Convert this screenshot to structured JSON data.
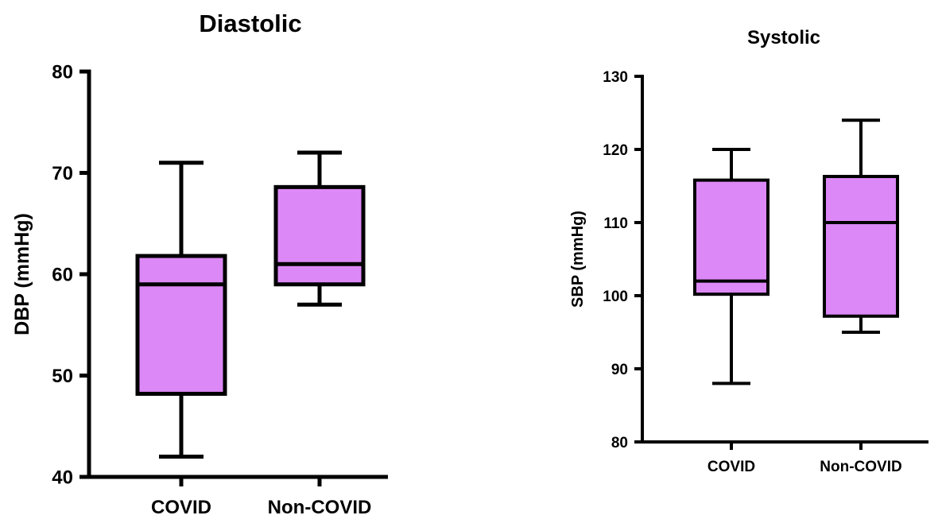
{
  "chart_data": [
    {
      "type": "box",
      "title": "Diastolic",
      "xlabel": "",
      "ylabel": "DBP (mmHg)",
      "ylim": [
        40,
        80
      ],
      "yticks": [
        40,
        50,
        60,
        70,
        80
      ],
      "categories": [
        "COVID",
        "Non-COVID"
      ],
      "boxes": [
        {
          "category": "COVID",
          "min": 42,
          "q1": 48.2,
          "median": 59,
          "q3": 61.8,
          "max": 71
        },
        {
          "category": "Non-COVID",
          "min": 57,
          "q1": 59,
          "median": 61,
          "q3": 68.6,
          "max": 72
        }
      ],
      "grid": false,
      "box_color": "#dd88f7"
    },
    {
      "type": "box",
      "title": "Systolic",
      "xlabel": "",
      "ylabel": "SBP (mmHg)",
      "ylim": [
        80,
        130
      ],
      "yticks": [
        80,
        90,
        100,
        110,
        120,
        130
      ],
      "categories": [
        "COVID",
        "Non-COVID"
      ],
      "boxes": [
        {
          "category": "COVID",
          "min": 88,
          "q1": 100.2,
          "median": 102,
          "q3": 115.8,
          "max": 120
        },
        {
          "category": "Non-COVID",
          "min": 95,
          "q1": 97.2,
          "median": 110,
          "q3": 116.3,
          "max": 124
        }
      ],
      "grid": false,
      "box_color": "#dd88f7"
    }
  ]
}
